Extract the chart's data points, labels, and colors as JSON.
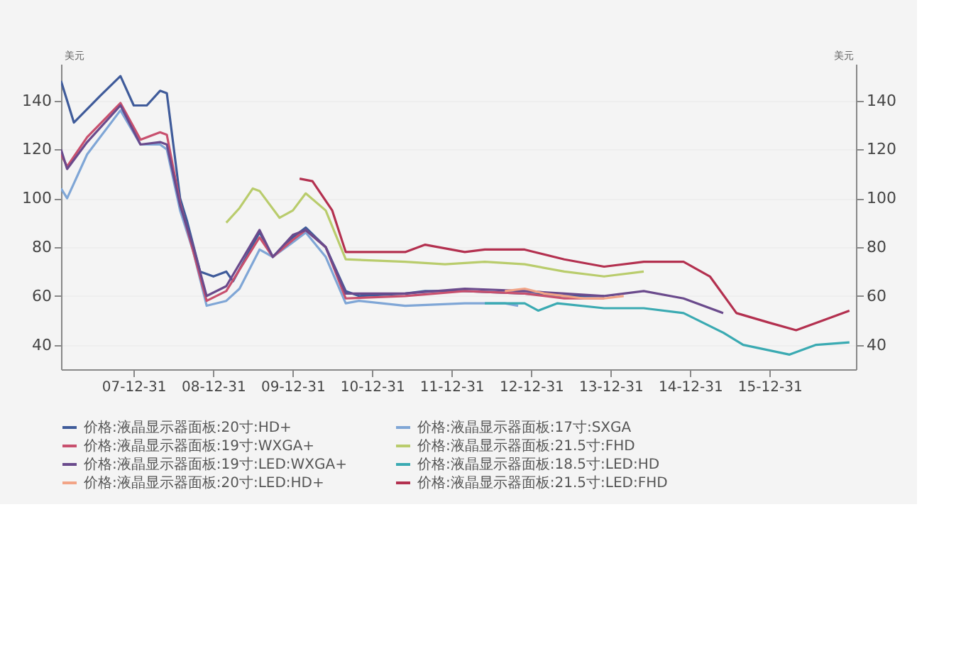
{
  "chart_data": {
    "type": "line",
    "ylabel": "美元",
    "y2label": "美元",
    "xlim": [
      "2007-02-01",
      "2017-01-31"
    ],
    "xticks": [
      {
        "value": "2007-12-31",
        "label": "07-12-31"
      },
      {
        "value": "2008-12-31",
        "label": "08-12-31"
      },
      {
        "value": "2009-12-31",
        "label": "09-12-31"
      },
      {
        "value": "2010-12-31",
        "label": "10-12-31"
      },
      {
        "value": "2011-12-31",
        "label": "11-12-31"
      },
      {
        "value": "2012-12-31",
        "label": "12-12-31"
      },
      {
        "value": "2013-12-31",
        "label": "13-12-31"
      },
      {
        "value": "2014-12-31",
        "label": "14-12-31"
      },
      {
        "value": "2015-12-31",
        "label": "15-12-31"
      }
    ],
    "ylim": [
      30,
      155
    ],
    "yticks": [
      40,
      60,
      80,
      100,
      120,
      140
    ],
    "y2lim": [
      30,
      155
    ],
    "y2ticks": [
      40,
      60,
      80,
      100,
      120,
      140
    ],
    "grid": "y",
    "legend": "bottom",
    "line_style": "solid",
    "marker": "none",
    "series": [
      {
        "name": "价格:液晶显示器面板:20寸:HD+",
        "color": "#3f5b9a",
        "x": [
          "2007-02",
          "2007-04",
          "2007-08",
          "2007-11",
          "2008-01",
          "2008-03",
          "2008-05",
          "2008-06",
          "2008-08",
          "2008-09",
          "2008-11",
          "2009-01",
          "2009-03",
          "2009-04",
          "2009-06",
          "2009-08",
          "2009-10",
          "2010-01",
          "2010-03",
          "2010-06",
          "2010-09",
          "2010-11",
          "2011-06",
          "2011-09",
          "2012-03",
          "2012-12",
          "2013-06",
          "2013-12"
        ],
        "values": [
          148,
          131,
          142,
          150,
          138,
          138,
          144,
          143,
          100,
          91,
          70,
          68,
          70,
          66,
          76,
          86,
          76,
          84,
          88,
          80,
          62,
          60,
          61,
          62,
          62,
          61,
          60,
          60
        ]
      },
      {
        "name": "价格:液晶显示器面板:17寸:SXGA",
        "color": "#7fa6d6",
        "x": [
          "2007-02",
          "2007-03",
          "2007-06",
          "2007-11",
          "2008-02",
          "2008-05",
          "2008-06",
          "2008-08",
          "2008-10",
          "2008-12",
          "2009-03",
          "2009-05",
          "2009-08",
          "2009-10",
          "2010-01",
          "2010-03",
          "2010-06",
          "2010-09",
          "2010-11",
          "2011-06",
          "2012-03",
          "2012-09",
          "2012-11"
        ],
        "values": [
          104,
          100,
          118,
          136,
          122,
          122,
          120,
          95,
          78,
          56,
          58,
          63,
          79,
          76,
          82,
          86,
          76,
          57,
          58,
          56,
          57,
          57,
          56
        ]
      },
      {
        "name": "价格:液晶显示器面板:19寸:WXGA+",
        "color": "#c8506e",
        "x": [
          "2007-02",
          "2007-03",
          "2007-06",
          "2007-11",
          "2008-02",
          "2008-05",
          "2008-06",
          "2008-08",
          "2008-10",
          "2008-12",
          "2009-03",
          "2009-08",
          "2009-10",
          "2010-01",
          "2010-03",
          "2010-06",
          "2010-09",
          "2011-06",
          "2012-03",
          "2012-12",
          "2013-06",
          "2013-12"
        ],
        "values": [
          118,
          113,
          125,
          139,
          124,
          127,
          126,
          98,
          78,
          58,
          62,
          84,
          76,
          83,
          87,
          80,
          59,
          60,
          62,
          61,
          59,
          59
        ]
      },
      {
        "name": "价格:液晶显示器面板:21.5寸:FHD",
        "color": "#b9cc6c",
        "x": [
          "2009-03",
          "2009-05",
          "2009-07",
          "2009-08",
          "2009-11",
          "2010-01",
          "2010-03",
          "2010-06",
          "2010-09",
          "2011-06",
          "2011-12",
          "2012-06",
          "2012-12",
          "2013-06",
          "2013-12",
          "2014-06"
        ],
        "values": [
          90,
          96,
          104,
          103,
          92,
          95,
          102,
          95,
          75,
          74,
          73,
          74,
          73,
          70,
          68,
          70
        ]
      },
      {
        "name": "价格:液晶显示器面板:19寸:LED:WXGA+",
        "color": "#6a4a8c",
        "x": [
          "2007-02",
          "2007-03",
          "2007-06",
          "2007-11",
          "2008-02",
          "2008-05",
          "2008-06",
          "2008-08",
          "2008-10",
          "2008-12",
          "2009-03",
          "2009-08",
          "2009-10",
          "2010-01",
          "2010-03",
          "2010-06",
          "2010-09",
          "2011-06",
          "2012-03",
          "2012-12",
          "2013-06",
          "2013-12",
          "2014-06",
          "2014-12",
          "2015-06"
        ],
        "values": [
          120,
          112,
          123,
          138,
          122,
          123,
          122,
          97,
          80,
          60,
          64,
          87,
          76,
          85,
          87,
          80,
          61,
          61,
          63,
          62,
          61,
          60,
          62,
          59,
          53
        ]
      },
      {
        "name": "价格:液晶显示器面板:18.5寸:LED:HD",
        "color": "#3aaab2",
        "x": [
          "2012-06",
          "2012-12",
          "2013-02",
          "2013-05",
          "2013-12",
          "2014-06",
          "2014-12",
          "2015-06",
          "2015-09",
          "2016-04",
          "2016-08",
          "2017-01"
        ],
        "values": [
          57,
          57,
          54,
          57,
          55,
          55,
          53,
          45,
          40,
          36,
          40,
          41
        ]
      },
      {
        "name": "价格:液晶显示器面板:20寸:LED:HD+",
        "color": "#f2a486",
        "x": [
          "2012-09",
          "2012-12",
          "2013-03",
          "2013-09",
          "2013-12",
          "2014-03"
        ],
        "values": [
          62,
          63,
          61,
          59,
          59,
          60
        ]
      },
      {
        "name": "价格:液晶显示器面板:21.5寸:LED:FHD",
        "color": "#b3304f",
        "x": [
          "2010-02",
          "2010-04",
          "2010-07",
          "2010-09",
          "2011-06",
          "2011-09",
          "2012-03",
          "2012-06",
          "2012-12",
          "2013-06",
          "2013-12",
          "2014-06",
          "2014-12",
          "2015-04",
          "2015-08",
          "2016-01",
          "2016-05",
          "2016-09",
          "2017-01"
        ],
        "values": [
          108,
          107,
          95,
          78,
          78,
          81,
          78,
          79,
          79,
          75,
          72,
          74,
          74,
          68,
          53,
          49,
          46,
          50,
          54
        ]
      }
    ]
  }
}
